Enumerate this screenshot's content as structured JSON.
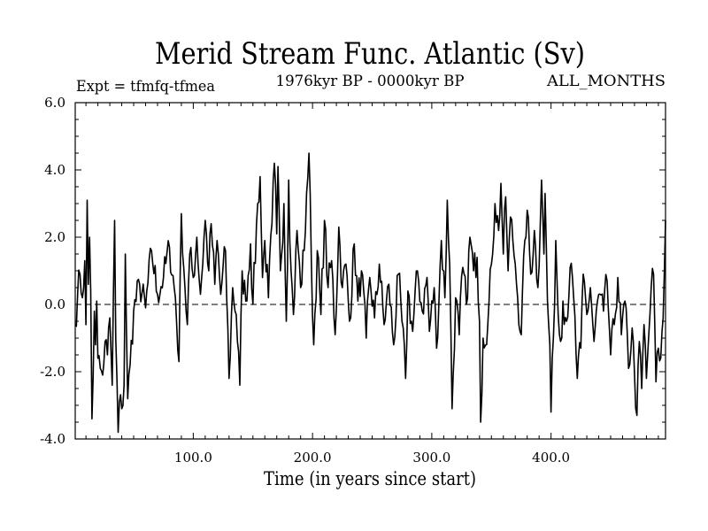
{
  "chart_data": {
    "type": "line",
    "title": "Merid Stream Func. Atlantic (Sv)",
    "subtitle": "1976kyr BP - 0000kyr BP",
    "left_label": "Expt = tfmfq-tfmea",
    "right_label": "ALL_MONTHS",
    "xlabel": "Time (in years since start)",
    "ylabel": "",
    "xlim": [
      1,
      496
    ],
    "ylim": [
      -4.0,
      6.0
    ],
    "xticks": [
      100,
      200,
      300,
      400
    ],
    "xtick_labels": [
      "100.0",
      "200.0",
      "300.0",
      "400.0"
    ],
    "yticks": [
      -4,
      -2,
      0,
      2,
      4,
      6
    ],
    "ytick_labels": [
      "-4.0",
      "-2.0",
      "0.0",
      "2.0",
      "4.0",
      "6.0"
    ],
    "reference_line": 0,
    "series": [
      {
        "name": "Merid Stream Func. Atlantic",
        "color": "#000000",
        "anchors": [
          [
            1,
            -0.6
          ],
          [
            3,
            0.3
          ],
          [
            5,
            0.9
          ],
          [
            7,
            0.2
          ],
          [
            9,
            1.3
          ],
          [
            10,
            -0.6
          ],
          [
            11,
            3.1
          ],
          [
            12,
            0.6
          ],
          [
            13,
            2.0
          ],
          [
            14,
            0.4
          ],
          [
            15,
            -3.4
          ],
          [
            16,
            -2.2
          ],
          [
            17,
            -0.2
          ],
          [
            18,
            -1.2
          ],
          [
            19,
            0.1
          ],
          [
            20,
            -1.6
          ],
          [
            22,
            -1.9
          ],
          [
            24,
            -2.1
          ],
          [
            26,
            -1.1
          ],
          [
            28,
            -1.5
          ],
          [
            30,
            -0.4
          ],
          [
            32,
            -2.4
          ],
          [
            34,
            2.5
          ],
          [
            35,
            -1.0
          ],
          [
            37,
            -3.8
          ],
          [
            38,
            -2.9
          ],
          [
            40,
            -3.1
          ],
          [
            42,
            -2.4
          ],
          [
            43,
            1.5
          ],
          [
            45,
            -2.8
          ],
          [
            47,
            -1.8
          ],
          [
            50,
            -0.2
          ],
          [
            55,
            0.6
          ],
          [
            60,
            -0.1
          ],
          [
            65,
            1.6
          ],
          [
            70,
            0.3
          ],
          [
            75,
            0.8
          ],
          [
            80,
            1.7
          ],
          [
            85,
            0.2
          ],
          [
            88,
            -1.7
          ],
          [
            90,
            2.7
          ],
          [
            93,
            0.5
          ],
          [
            95,
            -0.6
          ],
          [
            97,
            1.5
          ],
          [
            100,
            0.8
          ],
          [
            103,
            2.0
          ],
          [
            106,
            0.3
          ],
          [
            110,
            2.5
          ],
          [
            113,
            1.0
          ],
          [
            115,
            2.4
          ],
          [
            118,
            0.6
          ],
          [
            120,
            1.9
          ],
          [
            123,
            0.3
          ],
          [
            127,
            1.6
          ],
          [
            130,
            -2.2
          ],
          [
            133,
            0.5
          ],
          [
            136,
            -0.3
          ],
          [
            139,
            -2.4
          ],
          [
            141,
            1.0
          ],
          [
            144,
            0.1
          ],
          [
            148,
            1.8
          ],
          [
            150,
            0.0
          ],
          [
            154,
            3.0
          ],
          [
            156,
            3.8
          ],
          [
            158,
            0.8
          ],
          [
            160,
            1.9
          ],
          [
            163,
            0.2
          ],
          [
            166,
            2.4
          ],
          [
            168,
            4.2
          ],
          [
            170,
            2.1
          ],
          [
            171,
            4.1
          ],
          [
            173,
            1.0
          ],
          [
            176,
            3.0
          ],
          [
            178,
            -0.5
          ],
          [
            180,
            3.7
          ],
          [
            182,
            1.0
          ],
          [
            184,
            -0.3
          ],
          [
            187,
            2.2
          ],
          [
            190,
            0.5
          ],
          [
            193,
            1.6
          ],
          [
            195,
            3.3
          ],
          [
            197,
            4.5
          ],
          [
            199,
            1.3
          ],
          [
            201,
            -1.2
          ],
          [
            204,
            1.6
          ],
          [
            207,
            -0.3
          ],
          [
            210,
            2.5
          ],
          [
            213,
            0.5
          ],
          [
            216,
            1.3
          ],
          [
            219,
            -0.9
          ],
          [
            222,
            2.3
          ],
          [
            225,
            0.5
          ],
          [
            228,
            1.2
          ],
          [
            231,
            -0.5
          ],
          [
            235,
            1.8
          ],
          [
            238,
            0.1
          ],
          [
            241,
            1.0
          ],
          [
            245,
            -1.0
          ],
          [
            248,
            0.8
          ],
          [
            252,
            -0.4
          ],
          [
            256,
            1.2
          ],
          [
            260,
            -0.6
          ],
          [
            264,
            0.6
          ],
          [
            268,
            -1.2
          ],
          [
            272,
            0.9
          ],
          [
            275,
            -0.5
          ],
          [
            278,
            -2.2
          ],
          [
            280,
            0.4
          ],
          [
            284,
            -0.8
          ],
          [
            288,
            1.0
          ],
          [
            292,
            -0.2
          ],
          [
            296,
            0.8
          ],
          [
            298,
            -0.8
          ],
          [
            302,
            0.5
          ],
          [
            304,
            -1.3
          ],
          [
            308,
            1.9
          ],
          [
            311,
            0.2
          ],
          [
            313,
            3.1
          ],
          [
            315,
            1.2
          ],
          [
            317,
            -3.1
          ],
          [
            320,
            0.2
          ],
          [
            323,
            -0.9
          ],
          [
            326,
            1.1
          ],
          [
            329,
            0.0
          ],
          [
            332,
            2.0
          ],
          [
            335,
            1.0
          ],
          [
            338,
            1.4
          ],
          [
            340,
            -0.5
          ],
          [
            341,
            -3.5
          ],
          [
            343,
            -1.0
          ],
          [
            347,
            -0.6
          ],
          [
            350,
            1.2
          ],
          [
            353,
            3.0
          ],
          [
            356,
            2.2
          ],
          [
            358,
            3.6
          ],
          [
            360,
            1.5
          ],
          [
            362,
            3.2
          ],
          [
            364,
            1.0
          ],
          [
            366,
            2.6
          ],
          [
            368,
            1.9
          ],
          [
            370,
            1.2
          ],
          [
            372,
            0.2
          ],
          [
            375,
            -0.9
          ],
          [
            378,
            1.9
          ],
          [
            380,
            2.8
          ],
          [
            383,
            0.9
          ],
          [
            386,
            2.2
          ],
          [
            389,
            0.5
          ],
          [
            392,
            3.7
          ],
          [
            394,
            1.5
          ],
          [
            395,
            3.3
          ],
          [
            397,
            0.1
          ],
          [
            399,
            -1.2
          ],
          [
            400,
            -3.2
          ],
          [
            402,
            -1.0
          ],
          [
            404,
            1.9
          ],
          [
            406,
            -0.3
          ],
          [
            408,
            -1.1
          ],
          [
            410,
            0.1
          ],
          [
            413,
            -0.5
          ],
          [
            416,
            1.1
          ],
          [
            419,
            0.2
          ],
          [
            422,
            -2.2
          ],
          [
            425,
            -1.3
          ],
          [
            427,
            0.9
          ],
          [
            430,
            -0.3
          ],
          [
            433,
            0.5
          ],
          [
            436,
            -1.1
          ],
          [
            440,
            0.3
          ],
          [
            444,
            -0.2
          ],
          [
            447,
            0.7
          ],
          [
            450,
            -1.5
          ],
          [
            453,
            -0.6
          ],
          [
            456,
            0.8
          ],
          [
            459,
            -0.9
          ],
          [
            462,
            0.1
          ],
          [
            465,
            -1.9
          ],
          [
            468,
            -0.7
          ],
          [
            470,
            -2.1
          ],
          [
            472,
            -3.3
          ],
          [
            474,
            -1.1
          ],
          [
            476,
            -2.5
          ],
          [
            478,
            -0.6
          ],
          [
            480,
            -2.2
          ],
          [
            482,
            -0.9
          ],
          [
            484,
            0.5
          ],
          [
            486,
            0.9
          ],
          [
            488,
            -2.3
          ],
          [
            490,
            -1.3
          ],
          [
            492,
            -1.6
          ],
          [
            494,
            -0.4
          ],
          [
            496,
            2.5
          ]
        ],
        "noise_seed": 7,
        "noise_amplitude": 0.5
      }
    ]
  }
}
